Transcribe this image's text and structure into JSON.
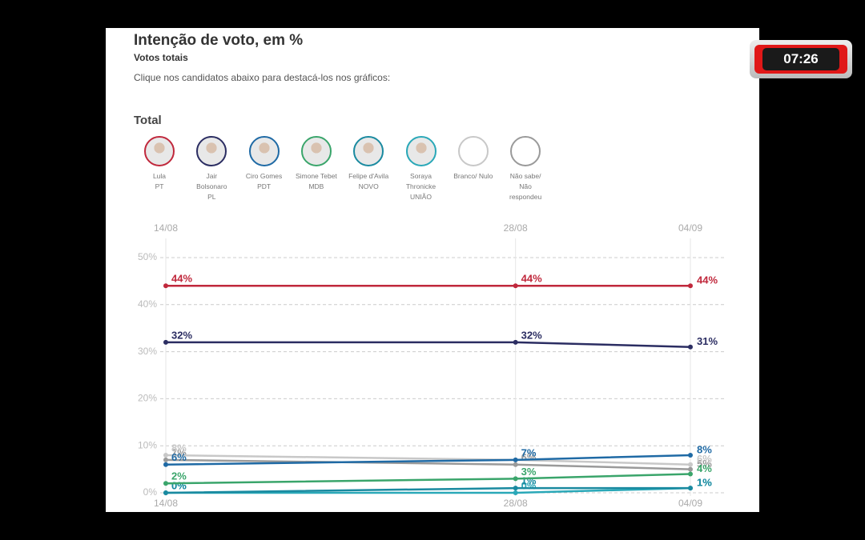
{
  "timer": "07:26",
  "instruction": "Clique nos candidatos abaixo para destacá-los nos gráficos:",
  "section_label": "Total",
  "chart_data": {
    "type": "line",
    "title": "Intenção de voto, em %",
    "subtitle": "Votos totais",
    "x": [
      "14/08",
      "28/08",
      "04/09"
    ],
    "ylim": [
      0,
      50
    ],
    "yticks": [
      {
        "value": 0,
        "label": "0%"
      },
      {
        "value": 10,
        "label": "10%"
      },
      {
        "value": 20,
        "label": "20%"
      },
      {
        "value": 30,
        "label": "30%"
      },
      {
        "value": 40,
        "label": "40%"
      },
      {
        "value": 50,
        "label": "50%"
      }
    ],
    "grid": true,
    "series": [
      {
        "name": "Lula",
        "party": "PT",
        "color": "#c0283c",
        "values": [
          44,
          44,
          44
        ],
        "value_labels": [
          "44%",
          "44%",
          "44%"
        ]
      },
      {
        "name": "Jair Bolsonaro",
        "party": "PL",
        "color": "#2b2d62",
        "values": [
          32,
          32,
          31
        ],
        "value_labels": [
          "32%",
          "32%",
          "31%"
        ]
      },
      {
        "name": "Ciro Gomes",
        "party": "PDT",
        "color": "#1f6aa5",
        "values": [
          6,
          7,
          8
        ],
        "value_labels": [
          "6%",
          "7%",
          "8%"
        ]
      },
      {
        "name": "Simone Tebet",
        "party": "MDB",
        "color": "#3aa56b",
        "values": [
          2,
          3,
          4
        ],
        "value_labels": [
          "2%",
          "3%",
          "4%"
        ]
      },
      {
        "name": "Felipe d'Avila",
        "party": "NOVO",
        "color": "#1a8aa0",
        "values": [
          0,
          1,
          1
        ],
        "value_labels": [
          "0%",
          "1%",
          "1%"
        ]
      },
      {
        "name": "Soraya Thronicke",
        "party": "UNIÃO",
        "color": "#2aa8b8",
        "values": [
          0,
          0,
          1
        ],
        "value_labels": [
          "0%",
          "0%",
          "1%"
        ]
      },
      {
        "name": "Branco/ Nulo",
        "color": "#c8c8c8",
        "values": [
          8,
          7,
          6
        ],
        "value_labels": [
          "8%",
          "7%",
          "6%"
        ]
      },
      {
        "name": "Não sabe/ Não respondeu",
        "color": "#9a9a9a",
        "values": [
          7,
          6,
          5
        ],
        "value_labels": [
          "7%",
          "6%",
          "5%"
        ]
      }
    ]
  }
}
